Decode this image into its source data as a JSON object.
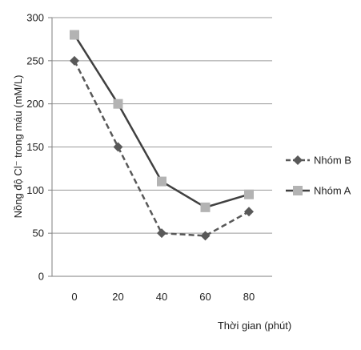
{
  "chart_data": {
    "type": "line",
    "title": "",
    "xlabel": "Thời gian (phút)",
    "ylabel": "Nồng độ Cl⁻ trong máu (mM/L)",
    "x": [
      0,
      20,
      40,
      60,
      80
    ],
    "ylim": [
      0,
      300
    ],
    "yticks": [
      0,
      50,
      100,
      150,
      200,
      250,
      300
    ],
    "grid": true,
    "legend_position": "right",
    "series": [
      {
        "name": "Nhóm B",
        "values": [
          250,
          150,
          50,
          47,
          75
        ],
        "line_style": "dashed",
        "marker": "diamond",
        "line_color": "#595959",
        "marker_color": "#595959"
      },
      {
        "name": "Nhóm A",
        "values": [
          280,
          200,
          110,
          80,
          95
        ],
        "line_style": "solid",
        "marker": "square",
        "line_color": "#404040",
        "marker_color": "#b3b3b3"
      }
    ]
  }
}
